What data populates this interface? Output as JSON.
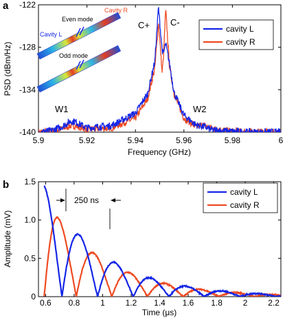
{
  "panels": {
    "a": {
      "label": "a"
    },
    "b": {
      "label": "b"
    }
  },
  "colors": {
    "cavity_L": "#1426e6",
    "cavity_R": "#ee4a22",
    "axis": "#000000"
  },
  "chart_data": [
    {
      "type": "line",
      "panel": "a",
      "xlabel": "Frequency (GHz)",
      "ylabel": "PSD (dBm/Hz)",
      "xlim": [
        5.9,
        6.0
      ],
      "ylim": [
        -140,
        -122
      ],
      "xticks": [
        "5.9",
        "5.92",
        "5.94",
        "5.96",
        "5.98",
        "6"
      ],
      "yticks": [
        "-122",
        "-128",
        "-134",
        "-140"
      ],
      "legend_position": "top-right",
      "annotations": {
        "c_plus": "C+",
        "c_minus": "C-",
        "w1": "W1",
        "w2": "W2"
      },
      "inset": {
        "cavity_r": "Cavity R",
        "cavity_l": "Cavity L",
        "even_mode": "Even mode",
        "odd_mode": "Odd mode"
      },
      "series": [
        {
          "name": "cavity L",
          "x": [
            5.9,
            5.905,
            5.91,
            5.913,
            5.915,
            5.92,
            5.93,
            5.94,
            5.945,
            5.948,
            5.9495,
            5.951,
            5.9515,
            5.9525,
            5.954,
            5.956,
            5.96,
            5.965,
            5.968,
            5.972,
            5.98,
            5.99,
            6.0
          ],
          "y": [
            -140.0,
            -139.8,
            -139.2,
            -138.5,
            -138.5,
            -139.4,
            -139.1,
            -137.3,
            -134.6,
            -130.0,
            -122.3,
            -128.3,
            -129.0,
            -127.5,
            -130.2,
            -134.5,
            -137.6,
            -139.0,
            -139.2,
            -139.7,
            -139.9,
            -140.0,
            -140.0
          ]
        },
        {
          "name": "cavity R",
          "x": [
            5.9,
            5.905,
            5.91,
            5.913,
            5.915,
            5.92,
            5.93,
            5.94,
            5.945,
            5.948,
            5.9495,
            5.951,
            5.9515,
            5.9525,
            5.954,
            5.956,
            5.96,
            5.965,
            5.968,
            5.972,
            5.98,
            5.99,
            6.0
          ],
          "y": [
            -140.0,
            -139.9,
            -139.5,
            -139.1,
            -139.1,
            -139.6,
            -139.4,
            -138.0,
            -135.3,
            -131.0,
            -124.4,
            -131.5,
            -129.8,
            -122.7,
            -130.5,
            -134.6,
            -138.0,
            -139.2,
            -139.0,
            -139.5,
            -139.9,
            -140.0,
            -140.0
          ]
        }
      ]
    },
    {
      "type": "line",
      "panel": "b",
      "xlabel": "Time (μs)",
      "ylabel": "Amplitude (mV)",
      "xlim": [
        0.55,
        2.25
      ],
      "ylim": [
        0,
        1.5
      ],
      "xticks": [
        "0.6",
        "0.8",
        "1",
        "1.2",
        "1.4",
        "1.6",
        "1.8",
        "2",
        "2.2"
      ],
      "yticks": [
        "0",
        "0.5",
        "1.0",
        "1.5"
      ],
      "legend_position": "top-right",
      "annotation": "250 ns",
      "series": [
        {
          "name": "cavity L",
          "amplitude": 1.45,
          "t0": 0.59,
          "decay_us": 0.42,
          "half_period_us": 0.25
        },
        {
          "name": "cavity R",
          "amplitude": 1.3,
          "t0": 0.59,
          "decay_us": 0.42,
          "half_period_us": 0.25,
          "phase_offset_us": 0.1
        }
      ]
    }
  ]
}
